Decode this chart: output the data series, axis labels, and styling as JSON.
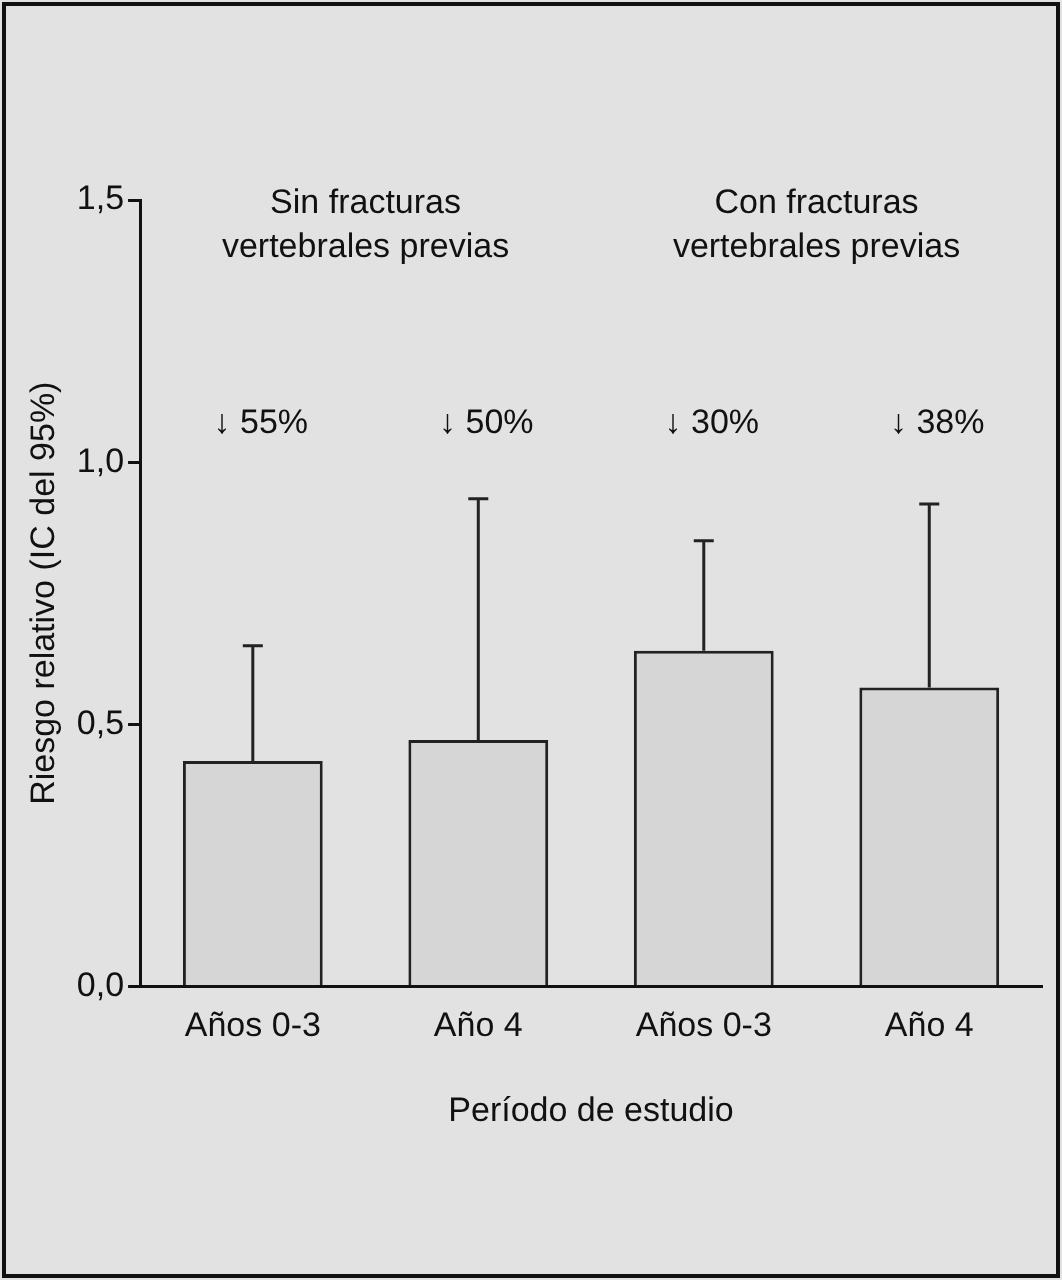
{
  "chart_data": {
    "type": "bar",
    "xlabel": "Período de estudio",
    "ylabel": "Riesgo relativo (IC del 95%)",
    "categories": [
      "Años 0-3",
      "Año 4",
      "Años 0-3",
      "Año 4"
    ],
    "values": [
      0.43,
      0.47,
      0.64,
      0.57
    ],
    "errors": [
      [
        0.43,
        0.65
      ],
      [
        0.47,
        0.93
      ],
      [
        0.64,
        0.85
      ],
      [
        0.57,
        0.92
      ]
    ],
    "color": "#d6d6d6",
    "ylim": [
      0,
      1.5
    ],
    "yticks": [
      {
        "value": 0,
        "label": "0,0"
      },
      {
        "value": 0.5,
        "label": "0,5"
      },
      {
        "value": 1,
        "label": "1,0"
      },
      {
        "value": 1.5,
        "label": "1,5"
      }
    ],
    "grid": false,
    "legend": false,
    "annotations": [
      "Sin fracturas vertebrales previas",
      "Con fracturas vertebrales previas",
      "↓ 55%",
      "↓ 50%",
      "↓ 30%",
      "↓ 38%"
    ]
  }
}
